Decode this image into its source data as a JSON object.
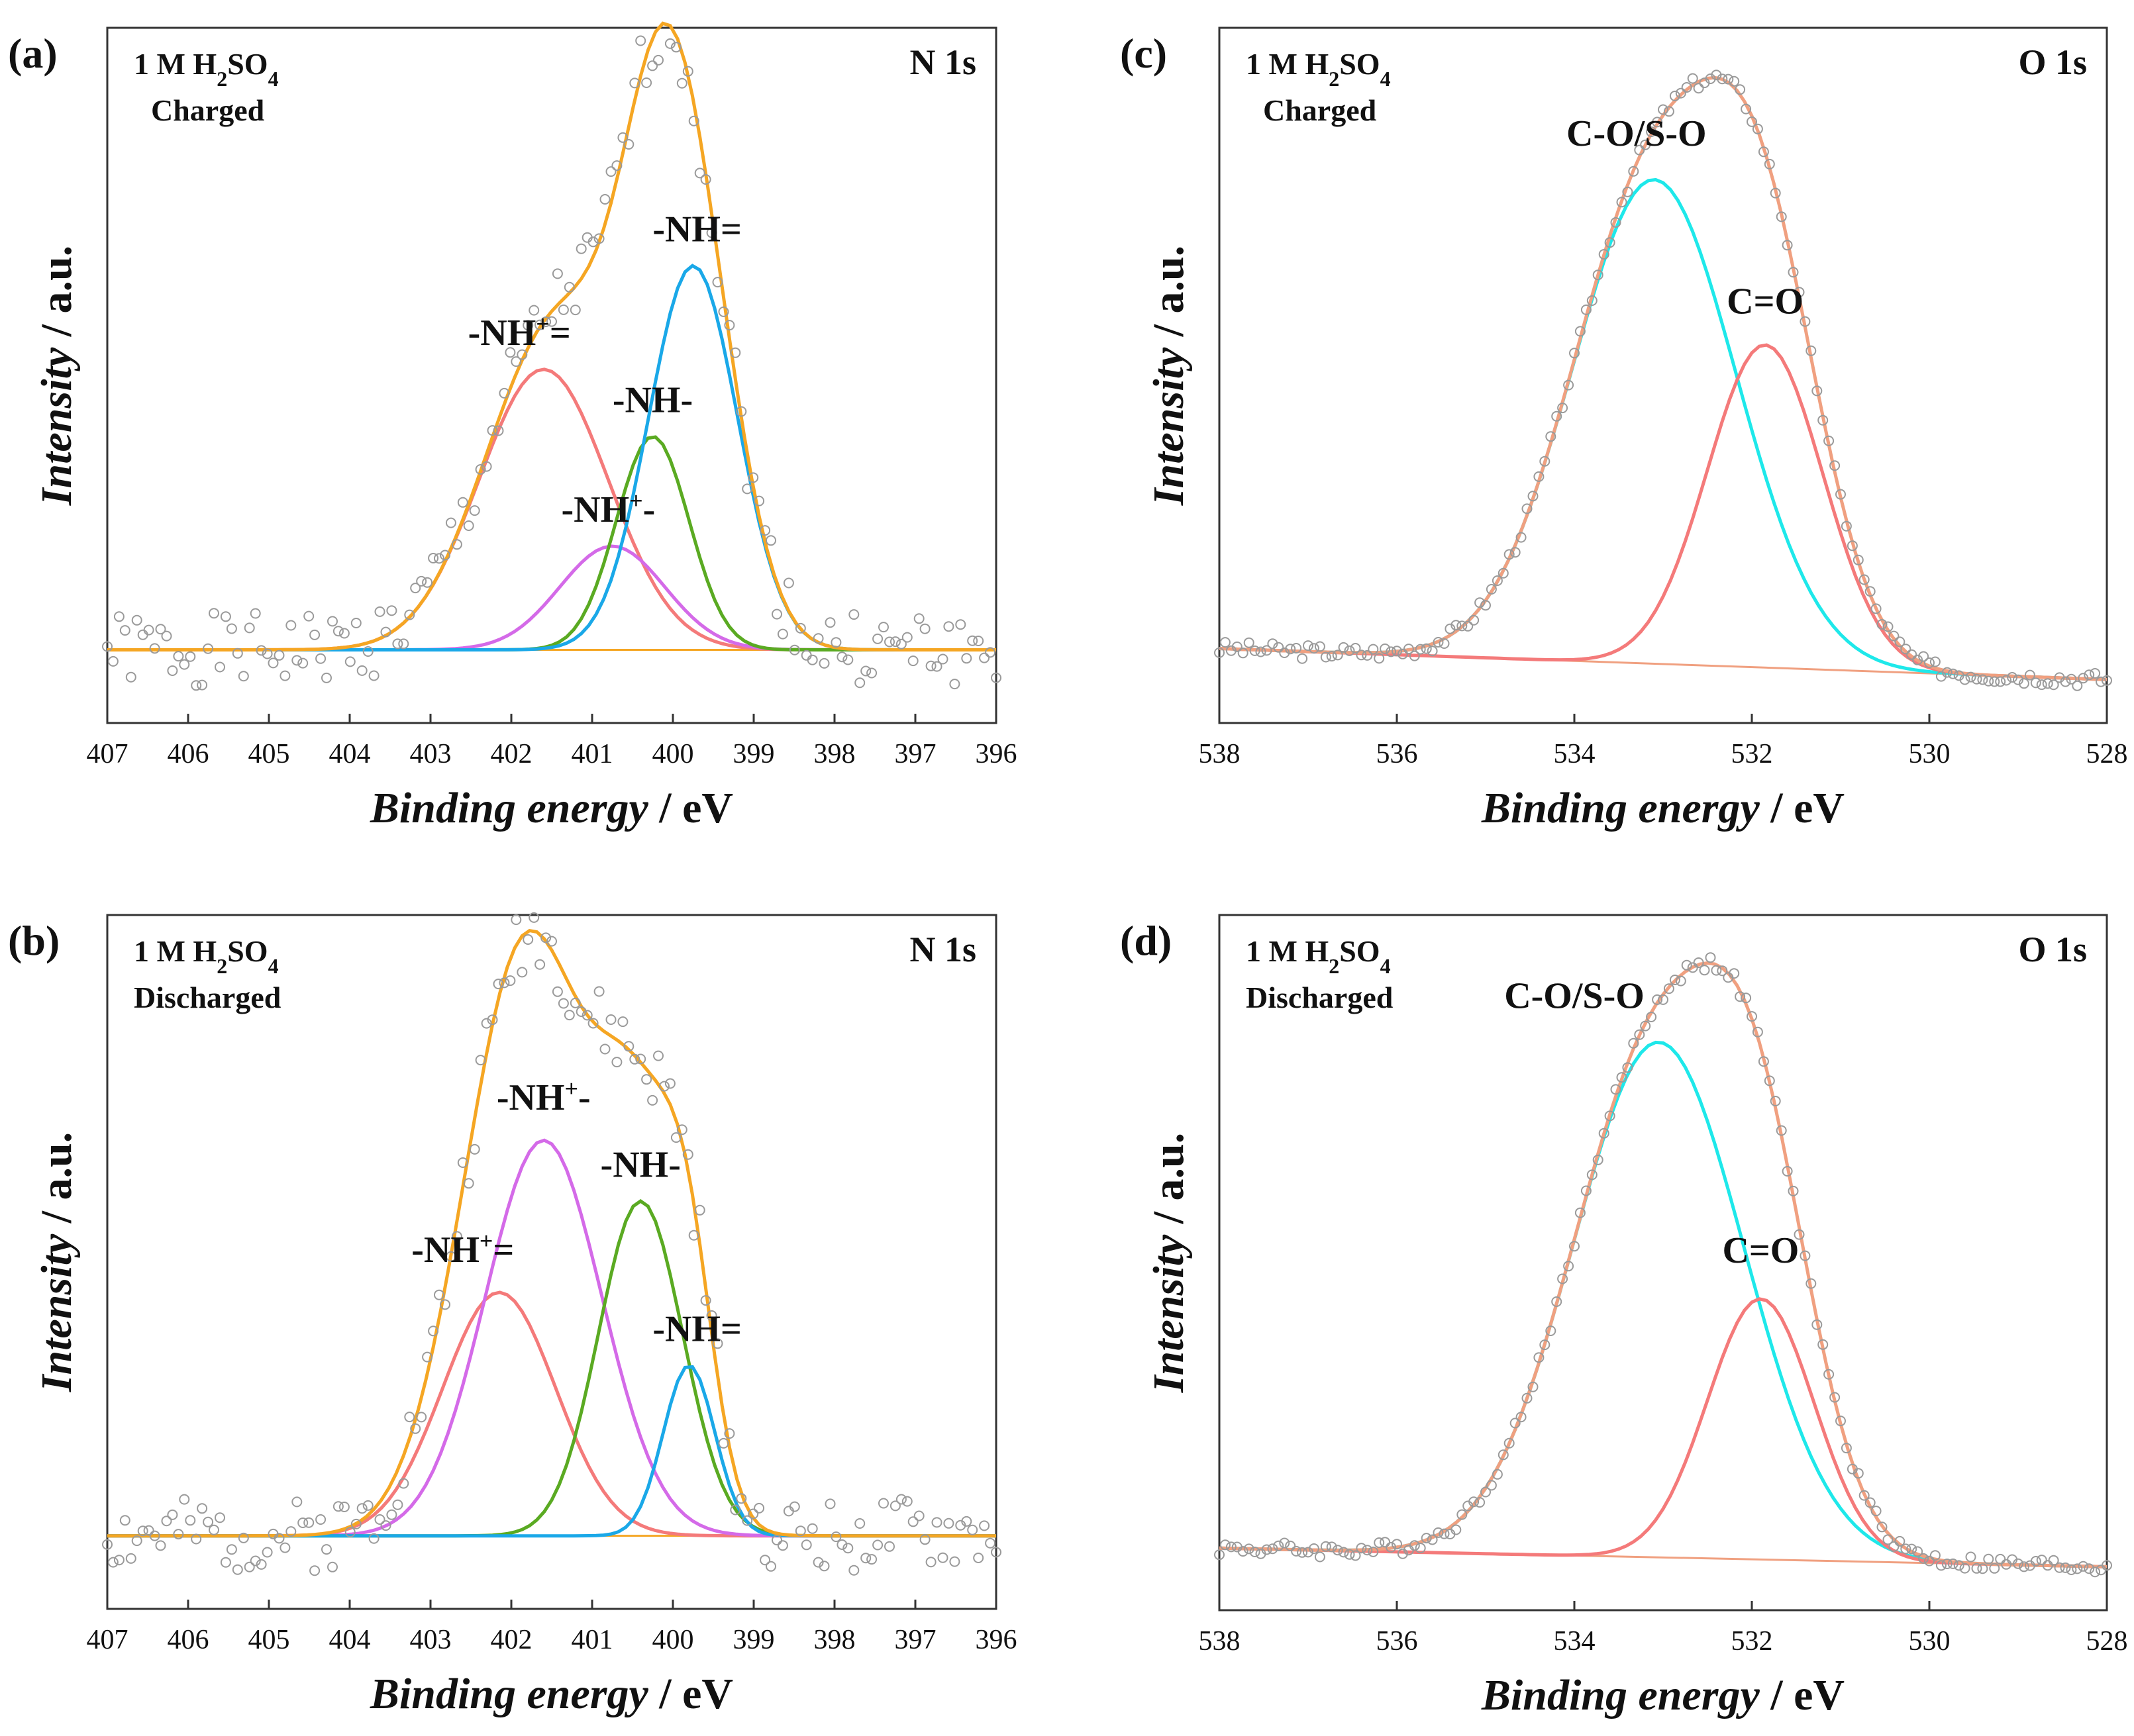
{
  "chart_data": [
    {
      "type": "scatter",
      "panel": "(a)",
      "core_level": "N 1s",
      "electrolyte": "1 M H2SO4",
      "electrolyte_main": "1 M H",
      "electrolyte_sub1": "2",
      "electrolyte_mid": "SO",
      "electrolyte_sub2": "4",
      "state": "Charged",
      "xlabel_italic": "Binding energy",
      "xlabel_unit": " / eV",
      "ylabel_italic": "Intensity",
      "ylabel_unit": " / a.u.",
      "xlim": [
        407,
        396
      ],
      "ylim": [
        -0.12,
        1.02
      ],
      "xticks": [
        407,
        406,
        405,
        404,
        403,
        402,
        401,
        400,
        399,
        398,
        397,
        396
      ],
      "background": [
        0.0,
        0.0
      ],
      "envelope_color": "#f5a623",
      "peaks": [
        {
          "name": "-NH+=",
          "label_main": "-NH",
          "label_sup": "+",
          "label_tail": "=",
          "center": 401.6,
          "height": 0.46,
          "sigma": 0.8,
          "color": "#f47a7a",
          "label_pos": [
            401.9,
            0.5
          ]
        },
        {
          "name": "-NH+-",
          "label_main": "-NH",
          "label_sup": "+",
          "label_tail": "-",
          "center": 400.75,
          "height": 0.17,
          "sigma": 0.65,
          "color": "#d46ae8",
          "label_pos": [
            400.8,
            0.21
          ]
        },
        {
          "name": "-NH-",
          "label_main": "-NH-",
          "label_sup": "",
          "label_tail": "",
          "center": 400.25,
          "height": 0.35,
          "sigma": 0.45,
          "color": "#5aaa22",
          "label_pos": [
            400.25,
            0.39
          ]
        },
        {
          "name": "-NH=",
          "label_main": "-NH=",
          "label_sup": "",
          "label_tail": "",
          "center": 399.75,
          "height": 0.63,
          "sigma": 0.55,
          "color": "#1aa8e8",
          "label_pos": [
            399.7,
            0.67
          ]
        }
      ],
      "data_noise_seed": 1
    },
    {
      "type": "scatter",
      "panel": "(b)",
      "core_level": "N 1s",
      "electrolyte": "1 M H2SO4",
      "electrolyte_main": "1 M H",
      "electrolyte_sub1": "2",
      "electrolyte_mid": "SO",
      "electrolyte_sub2": "4",
      "state": "Discharged",
      "xlabel_italic": "Binding energy",
      "xlabel_unit": " / eV",
      "ylabel_italic": "Intensity",
      "ylabel_unit": " / a.u.",
      "xlim": [
        407,
        396
      ],
      "ylim": [
        -0.12,
        1.02
      ],
      "xticks": [
        407,
        406,
        405,
        404,
        403,
        402,
        401,
        400,
        399,
        398,
        397,
        396
      ],
      "background": [
        0.0,
        0.0
      ],
      "envelope_color": "#f5a623",
      "peaks": [
        {
          "name": "-NH+=",
          "label_main": "-NH",
          "label_sup": "+",
          "label_tail": "=",
          "center": 402.15,
          "height": 0.4,
          "sigma": 0.7,
          "color": "#f47a7a",
          "label_pos": [
            402.6,
            0.45
          ]
        },
        {
          "name": "-NH+-",
          "label_main": "-NH",
          "label_sup": "+",
          "label_tail": "-",
          "center": 401.6,
          "height": 0.65,
          "sigma": 0.72,
          "color": "#d46ae8",
          "label_pos": [
            401.6,
            0.7
          ]
        },
        {
          "name": "-NH-",
          "label_main": "-NH-",
          "label_sup": "",
          "label_tail": "",
          "center": 400.4,
          "height": 0.55,
          "sigma": 0.52,
          "color": "#5aaa22",
          "label_pos": [
            400.4,
            0.59
          ]
        },
        {
          "name": "-NH=",
          "label_main": "-NH=",
          "label_sup": "",
          "label_tail": "",
          "center": 399.8,
          "height": 0.28,
          "sigma": 0.32,
          "color": "#1aa8e8",
          "label_pos": [
            399.7,
            0.32
          ]
        }
      ],
      "data_noise_seed": 2
    },
    {
      "type": "scatter",
      "panel": "(c)",
      "core_level": "O 1s",
      "electrolyte": "1 M H2SO4",
      "electrolyte_main": "1 M H",
      "electrolyte_sub1": "2",
      "electrolyte_mid": "SO",
      "electrolyte_sub2": "4",
      "state": "Charged",
      "xlabel_italic": "Binding energy",
      "xlabel_unit": " / eV",
      "ylabel_italic": "Intensity",
      "ylabel_unit": " / a.u.",
      "xlim": [
        538,
        528
      ],
      "ylim": [
        -0.1,
        1.02
      ],
      "xticks": [
        538,
        536,
        534,
        532,
        530,
        528
      ],
      "background": [
        0.02,
        -0.03
      ],
      "envelope_color": "#f0a080",
      "peaks": [
        {
          "name": "C-O/S-O",
          "label_main": "C-O/S-O",
          "label_sup": "",
          "label_tail": "",
          "center": 533.1,
          "height": 0.78,
          "sigma": 0.92,
          "color": "#1ee8ea",
          "label_pos": [
            533.3,
            0.83
          ]
        },
        {
          "name": "C=O",
          "label_main": "C=O",
          "label_sup": "",
          "label_tail": "",
          "center": 531.85,
          "height": 0.52,
          "sigma": 0.65,
          "color": "#f47a7a",
          "label_pos": [
            531.85,
            0.56
          ]
        }
      ],
      "data_noise_seed": 3
    },
    {
      "type": "scatter",
      "panel": "(d)",
      "core_level": "O 1s",
      "electrolyte": "1 M H2SO4",
      "electrolyte_main": "1 M H",
      "electrolyte_sub1": "2",
      "electrolyte_mid": "SO",
      "electrolyte_sub2": "4",
      "state": "Discharged",
      "xlabel_italic": "Binding energy",
      "xlabel_unit": " / eV",
      "ylabel_italic": "Intensity",
      "ylabel_unit": " / a.u.",
      "xlim": [
        538,
        528
      ],
      "ylim": [
        -0.1,
        1.02
      ],
      "xticks": [
        538,
        536,
        534,
        532,
        530,
        528
      ],
      "background": [
        0.0,
        -0.03
      ],
      "envelope_color": "#f0a080",
      "peaks": [
        {
          "name": "C-O/S-O",
          "label_main": "C-O/S-O",
          "label_sup": "",
          "label_tail": "",
          "center": 533.05,
          "height": 0.83,
          "sigma": 0.96,
          "color": "#1ee8ea",
          "label_pos": [
            534.0,
            0.87
          ]
        },
        {
          "name": "C=O",
          "label_main": "C=O",
          "label_sup": "",
          "label_tail": "",
          "center": 531.9,
          "height": 0.42,
          "sigma": 0.6,
          "color": "#f47a7a",
          "label_pos": [
            531.9,
            0.46
          ]
        }
      ],
      "data_noise_seed": 4
    }
  ]
}
